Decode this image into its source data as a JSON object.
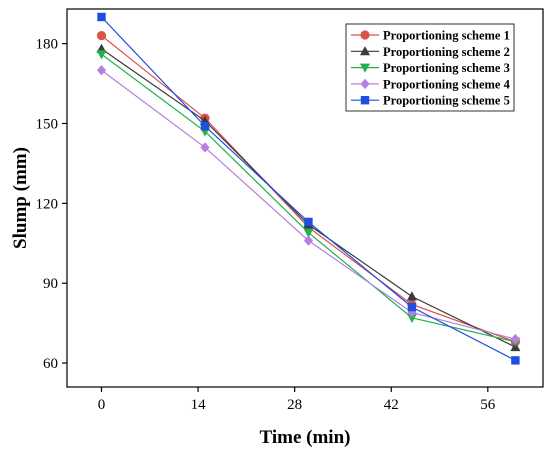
{
  "chart_data": {
    "type": "line",
    "xlabel": "Time (min)",
    "ylabel": "Slump (mm)",
    "x": [
      0,
      15,
      30,
      45,
      60
    ],
    "xticks": [
      0,
      14,
      28,
      42,
      56
    ],
    "yticks": [
      60,
      90,
      120,
      150,
      180
    ],
    "xlim": [
      -5,
      64
    ],
    "ylim": [
      51,
      193
    ],
    "grid": false,
    "legend_position": "top-right",
    "series": [
      {
        "name": "Proportioning scheme 1",
        "marker": "circle",
        "color": "#d9534a",
        "values": [
          183,
          152,
          111,
          82,
          68
        ]
      },
      {
        "name": "Proportioning scheme 2",
        "marker": "triangle-up",
        "color": "#3a3a3a",
        "values": [
          178,
          151,
          112,
          85,
          66
        ]
      },
      {
        "name": "Proportioning scheme 3",
        "marker": "triangle-down",
        "color": "#22b14c",
        "values": [
          176,
          147,
          109,
          77,
          68
        ]
      },
      {
        "name": "Proportioning scheme 4",
        "marker": "diamond",
        "color": "#b77fe0",
        "values": [
          170,
          141,
          106,
          79,
          69
        ]
      },
      {
        "name": "Proportioning scheme 5",
        "marker": "square",
        "color": "#1f4fe0",
        "values": [
          190,
          149,
          113,
          81,
          61
        ]
      }
    ]
  }
}
